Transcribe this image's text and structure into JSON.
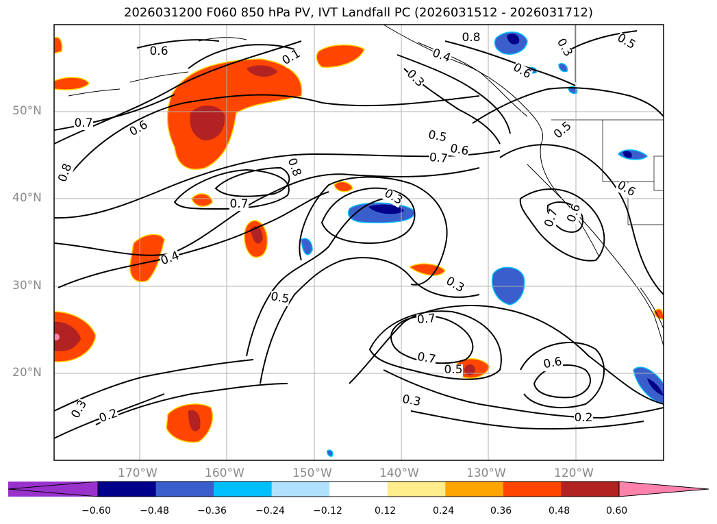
{
  "title": "2026031200 F060 850 hPa PV, IVT Landfall PC (2026031512 - 2026031712)",
  "latitude_labels": [
    "50°N",
    "40°N",
    "30°N",
    "20°N"
  ],
  "longitude_labels": [
    "170°W",
    "160°W",
    "150°W",
    "140°W",
    "130°W",
    "120°W"
  ],
  "contour_labels": [
    "0.6",
    "0.1",
    "0.8",
    "0.4",
    "0.3",
    "0.6",
    "0.7",
    "0.5",
    "0.8",
    "0.6",
    "0.7",
    "0.8",
    "0.7",
    "0.5",
    "0.6",
    "0.7",
    "0.3",
    "0.6",
    "0.5",
    "0.7",
    "0.3",
    "0.4",
    "0.5",
    "0.3",
    "0.7",
    "0.6",
    "0.5",
    "0.6",
    "0.3",
    "0.3",
    "0.2",
    "0.2"
  ],
  "colorbar": {
    "ticks": [
      "−0.60",
      "−0.48",
      "−0.36",
      "−0.24",
      "−0.12",
      "0.12",
      "0.24",
      "0.36",
      "0.48",
      "0.60"
    ],
    "colors": [
      "#9932cc",
      "#00008b",
      "#3a5fcd",
      "#00bfff",
      "#b0e2ff",
      "#ffffff",
      "#ffec8b",
      "#ffa500",
      "#ff4500",
      "#b22222",
      "#ff82ab"
    ]
  },
  "colors": {
    "positive_fill": "#ff4500",
    "strong_positive": "#b22222",
    "negative_fill": "#3a5fcd",
    "strong_negative": "#00008b",
    "gridline": "#b0b0b0"
  }
}
